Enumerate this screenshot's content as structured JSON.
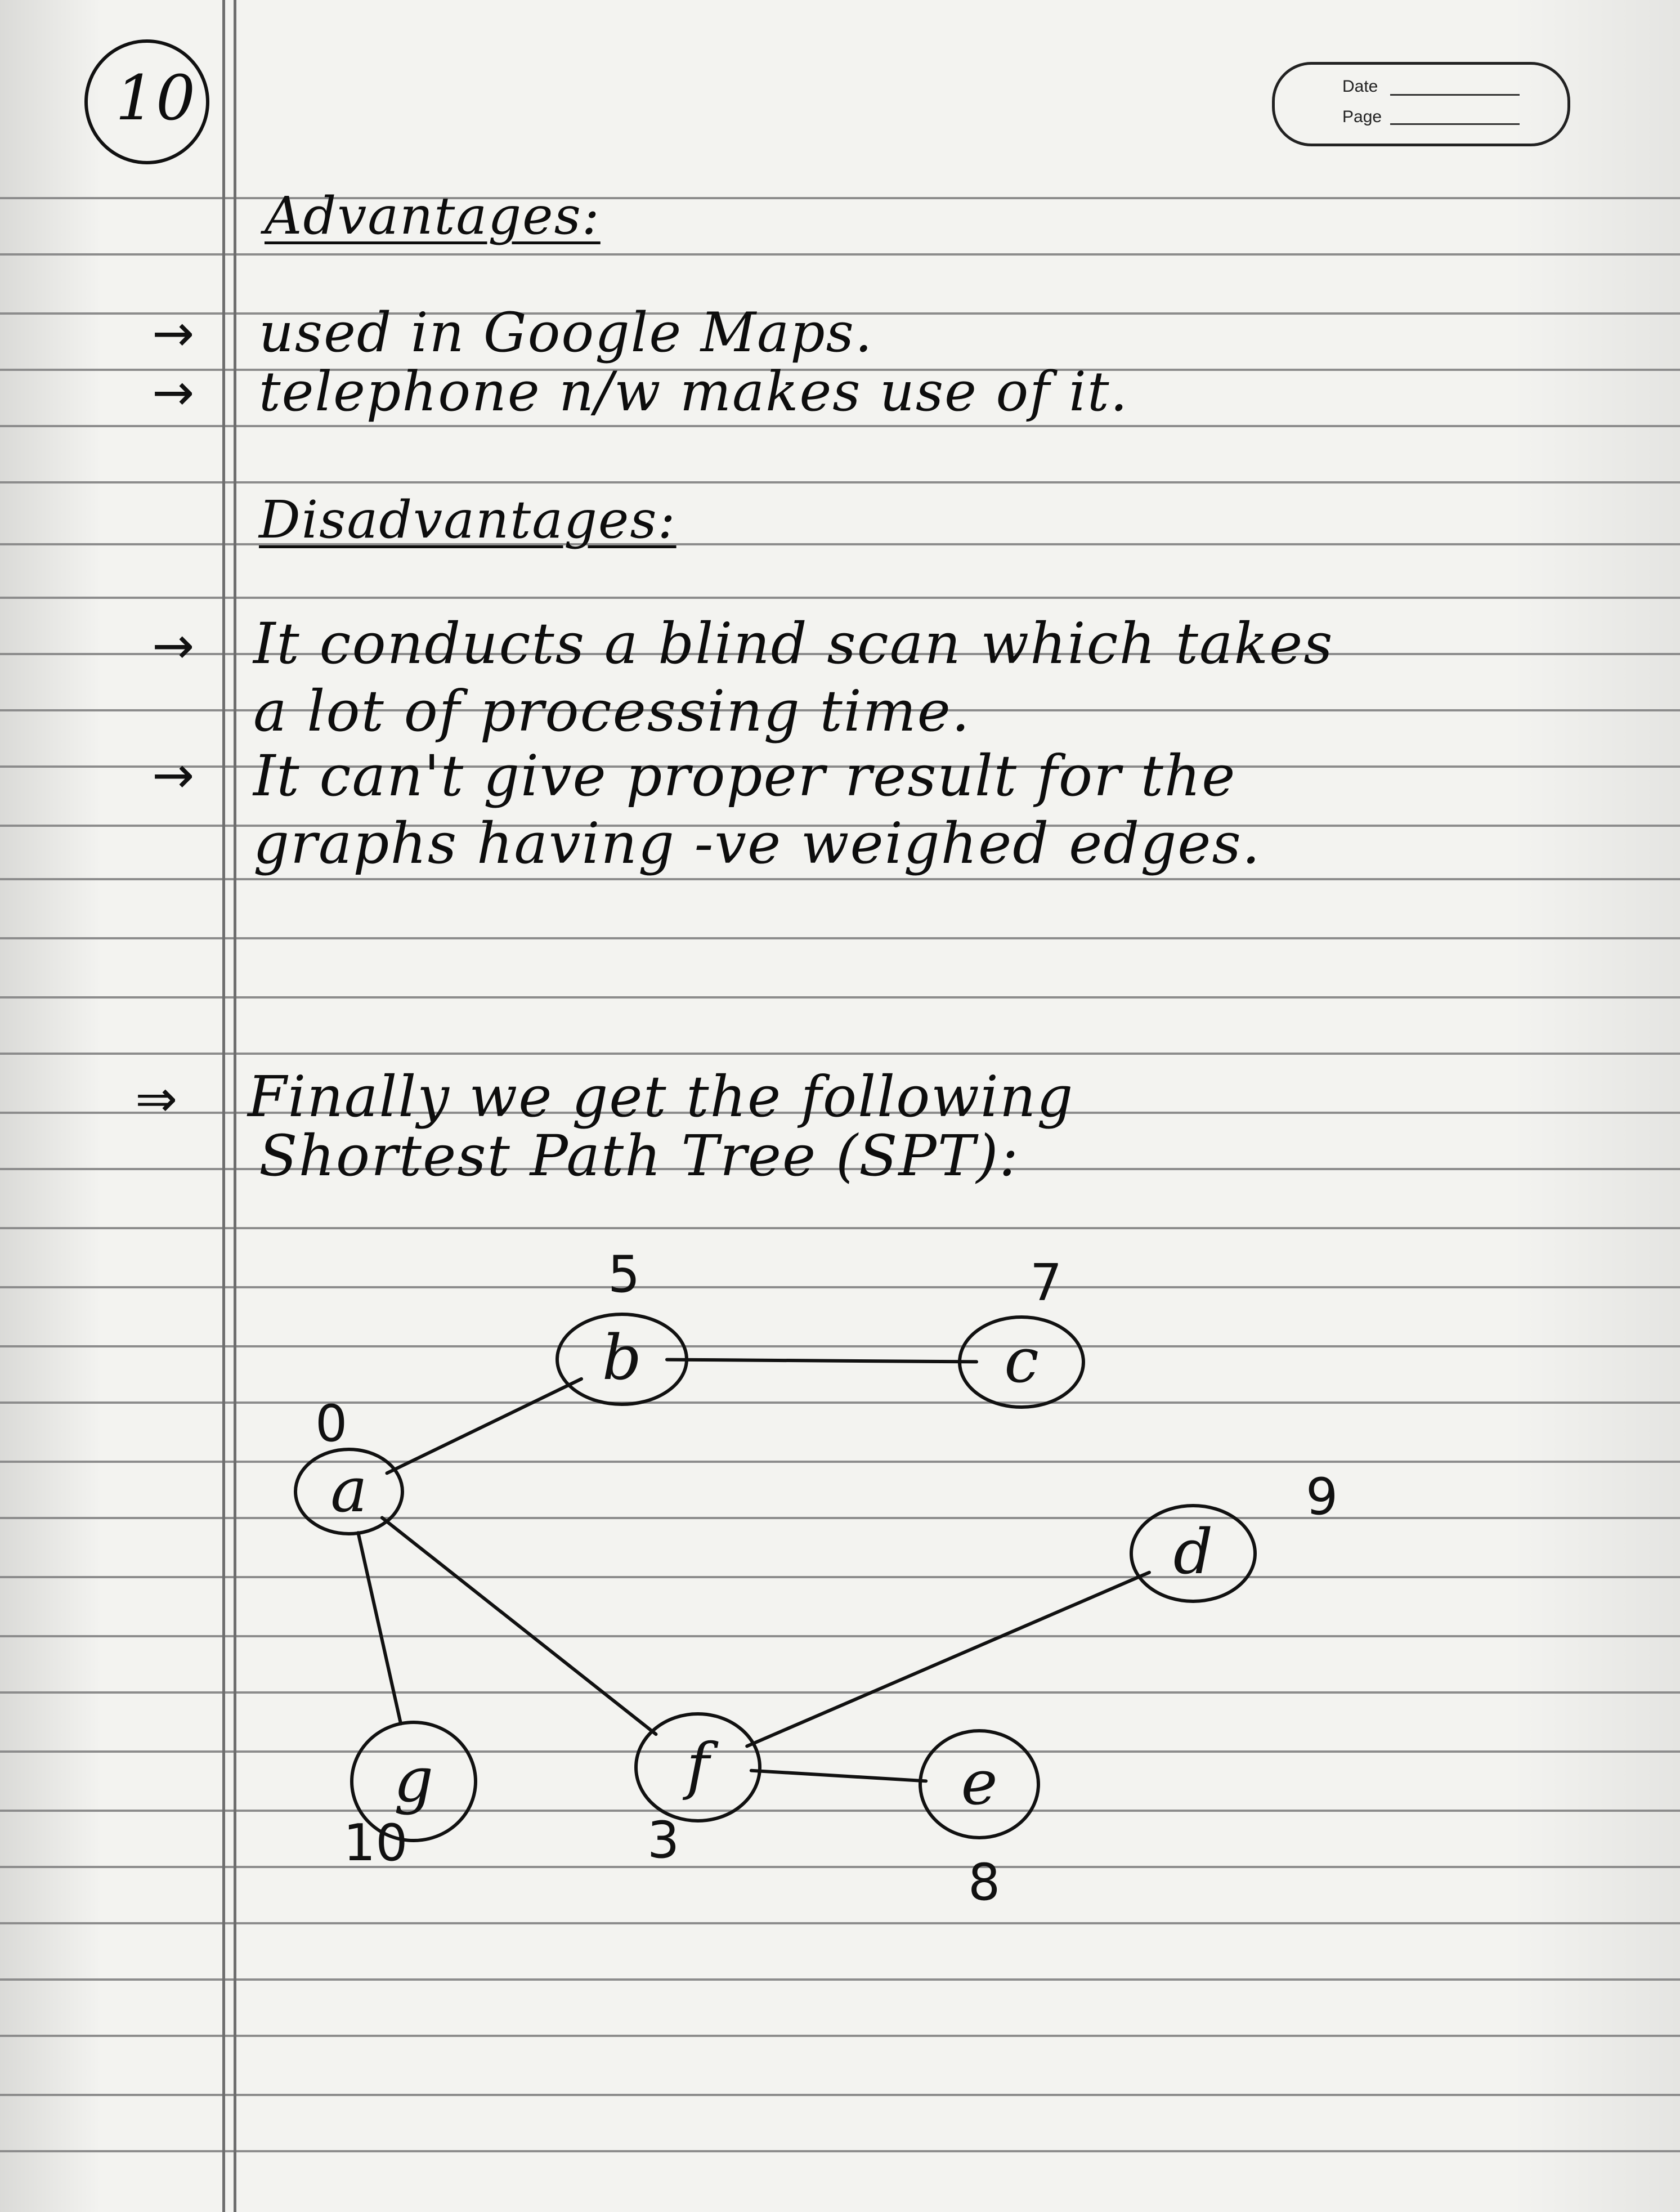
{
  "page_number": "10",
  "date_box": {
    "date_label": "Date",
    "page_label": "Page"
  },
  "advantages": {
    "heading": "Advantages:",
    "items": [
      "used in Google Maps.",
      "telephone n/w makes use of it."
    ]
  },
  "disadvantages": {
    "heading": "Disadvantages:",
    "items": [
      {
        "line1": "It conducts a blind scan which takes",
        "line2": "a lot of processing time."
      },
      {
        "line1": "It can't give proper result for the",
        "line2": "graphs having -ve weighed edges."
      }
    ]
  },
  "spt_intro": {
    "line1": "Finally we get the following",
    "line2": "Shortest Path Tree (SPT):"
  },
  "graph": {
    "nodes": [
      {
        "id": "a",
        "label": "a",
        "distance": "0"
      },
      {
        "id": "b",
        "label": "b",
        "distance": "5"
      },
      {
        "id": "c",
        "label": "c",
        "distance": "7"
      },
      {
        "id": "d",
        "label": "d",
        "distance": "9"
      },
      {
        "id": "g",
        "label": "g",
        "distance": "10"
      },
      {
        "id": "f",
        "label": "f",
        "distance": "3"
      },
      {
        "id": "e",
        "label": "e",
        "distance": "8"
      }
    ],
    "edges": [
      {
        "from": "a",
        "to": "b"
      },
      {
        "from": "b",
        "to": "c"
      },
      {
        "from": "a",
        "to": "g"
      },
      {
        "from": "a",
        "to": "f"
      },
      {
        "from": "f",
        "to": "d"
      },
      {
        "from": "f",
        "to": "e"
      }
    ]
  }
}
